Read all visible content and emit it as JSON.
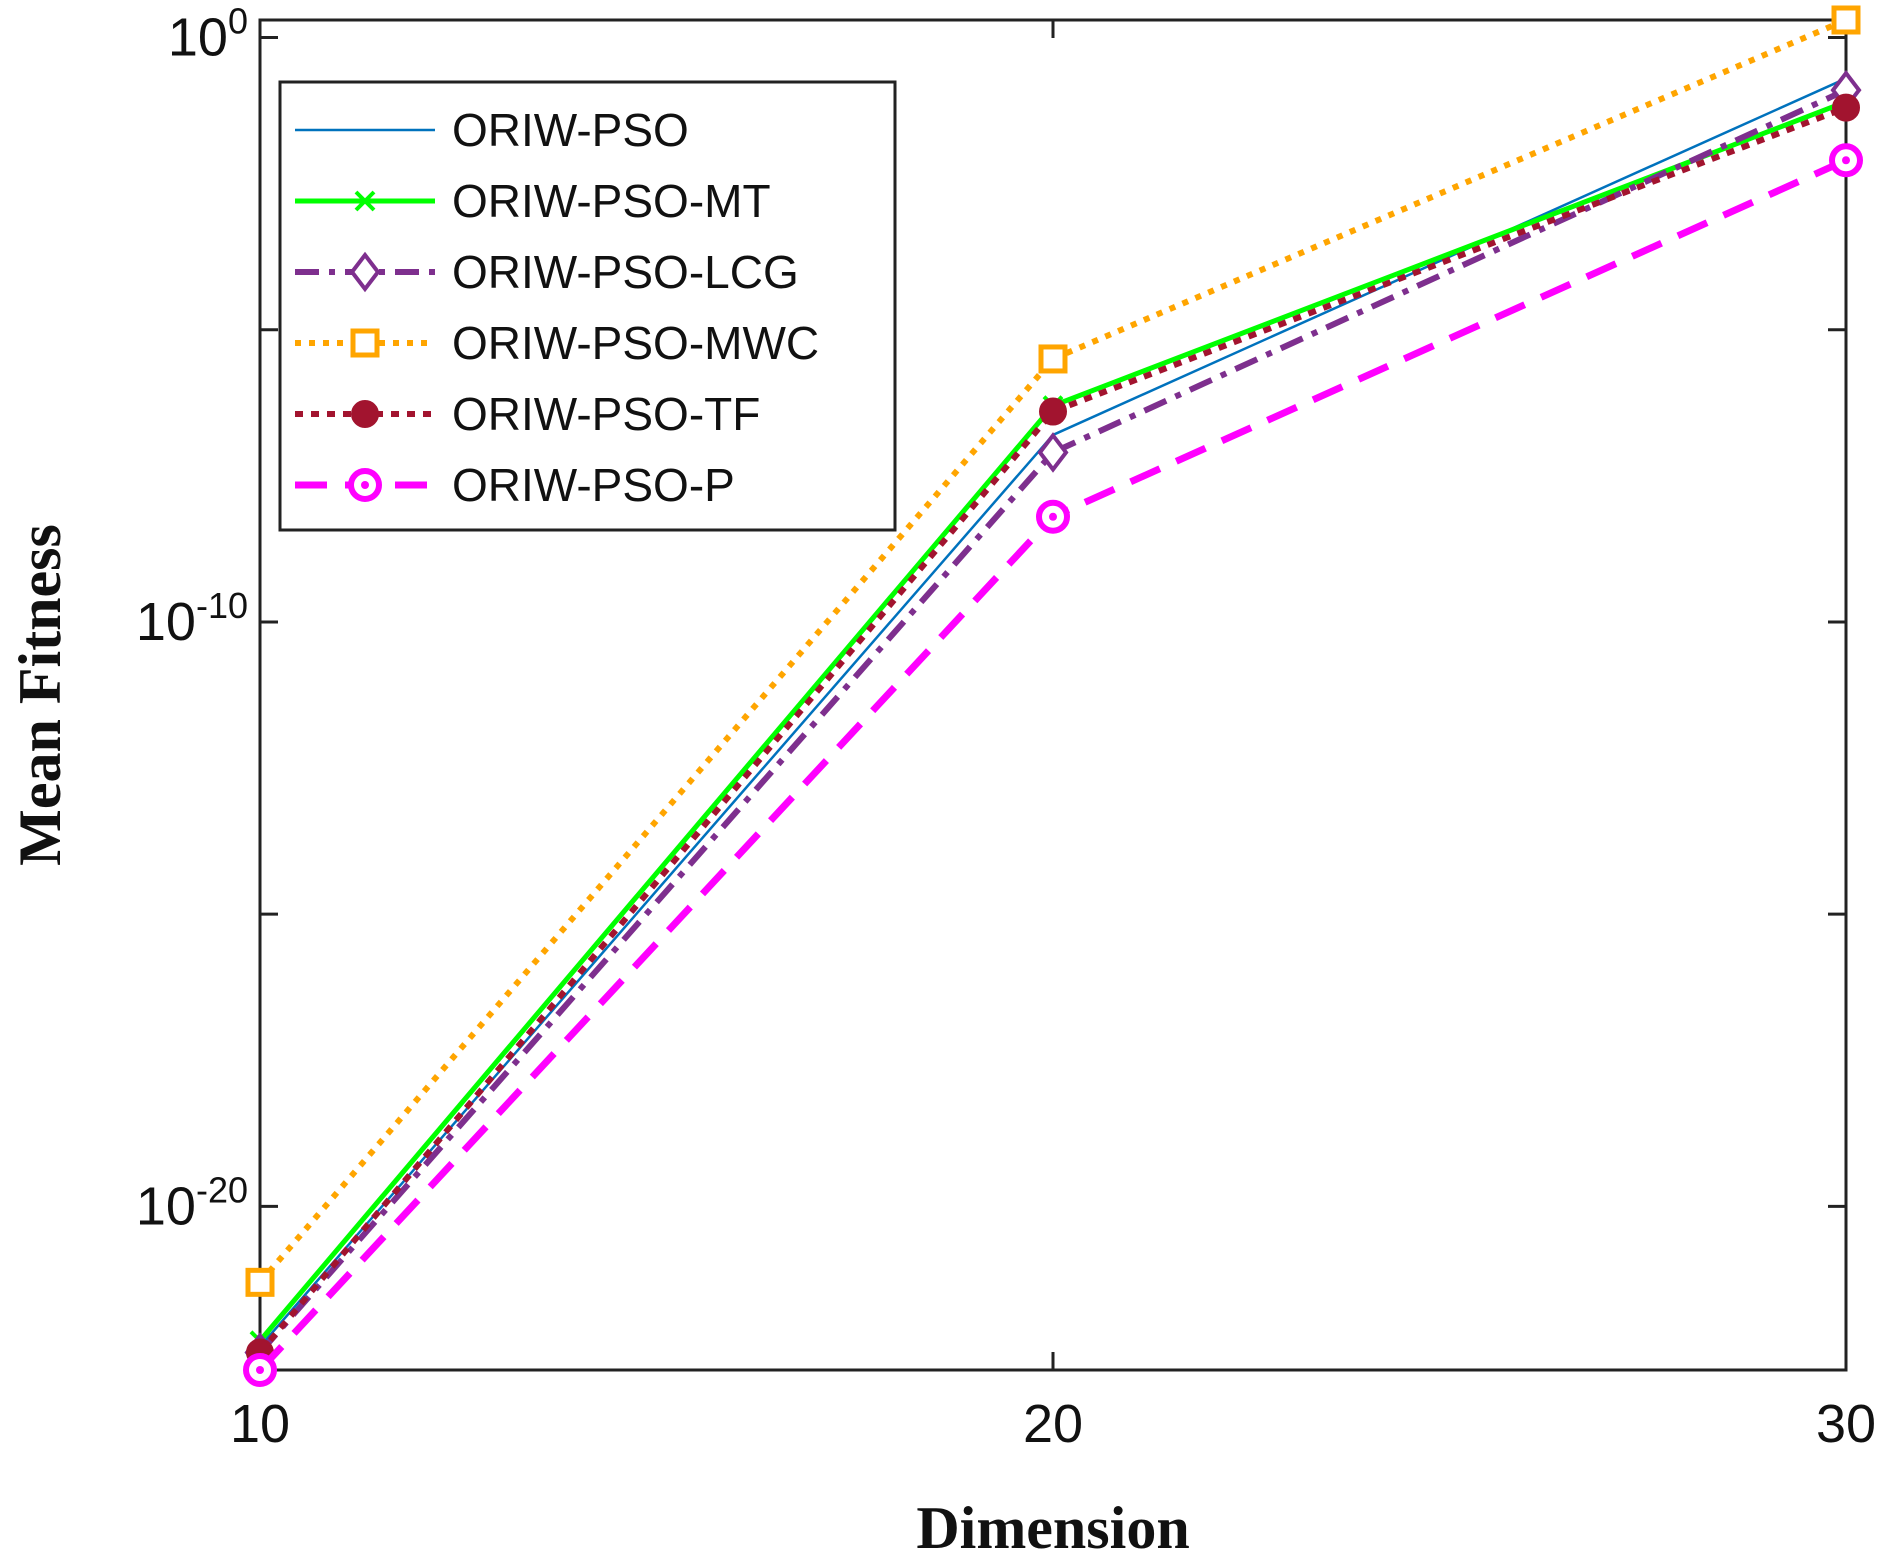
{
  "chart_data": {
    "type": "line",
    "yscale": "log",
    "xlabel": "Dimension",
    "ylabel": "Mean Fitness",
    "x": [
      10,
      20,
      30
    ],
    "xlim": [
      10,
      30
    ],
    "ylim_exp": [
      -22.8,
      0.3
    ],
    "x_ticks": [
      {
        "value": 10,
        "label": "10"
      },
      {
        "value": 20,
        "label": "20"
      },
      {
        "value": 30,
        "label": "30"
      }
    ],
    "y_ticks": [
      {
        "exp": 0,
        "base": "10",
        "sup": "0"
      },
      {
        "exp": -10,
        "base": "10",
        "sup": "-10"
      },
      {
        "exp": -20,
        "base": "10",
        "sup": "-20"
      }
    ],
    "y_minor_ticks_exp": [
      -5,
      -15
    ],
    "legend_position": "top-left",
    "series": [
      {
        "name": "ORIW-PSO",
        "color": "#0072BD",
        "dash": "",
        "width": 2.5,
        "marker": "none",
        "log10_values": [
          -22.4,
          -6.8,
          -0.7
        ]
      },
      {
        "name": "ORIW-PSO-MT",
        "color": "#00FF00",
        "dash": "",
        "width": 5,
        "marker": "x",
        "log10_values": [
          -22.3,
          -6.3,
          -1.1
        ]
      },
      {
        "name": "ORIW-PSO-LCG",
        "color": "#7E2F8E",
        "dash": "24,10,6,10",
        "width": 6,
        "marker": "diamond",
        "log10_values": [
          -22.5,
          -7.1,
          -0.9
        ]
      },
      {
        "name": "ORIW-PSO-MWC",
        "color": "#FFA500",
        "dash": "6,8",
        "width": 6,
        "marker": "square",
        "log10_values": [
          -21.3,
          -5.5,
          0.3
        ]
      },
      {
        "name": "ORIW-PSO-TF",
        "color": "#A2142F",
        "dash": "8,8",
        "width": 6,
        "marker": "dot",
        "log10_values": [
          -22.5,
          -6.4,
          -1.2
        ]
      },
      {
        "name": "ORIW-PSO-P",
        "color": "#FF00FF",
        "dash": "32,18",
        "width": 7,
        "marker": "circle",
        "log10_values": [
          -22.8,
          -8.2,
          -2.1
        ]
      }
    ]
  }
}
